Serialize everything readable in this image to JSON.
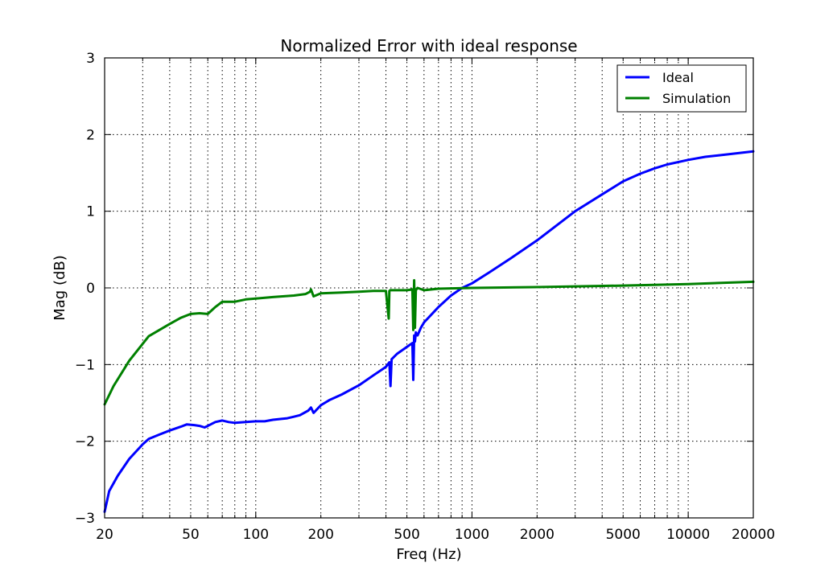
{
  "chart_data": {
    "type": "line",
    "title": "Normalized Error with ideal response",
    "xlabel": "Freq (Hz)",
    "ylabel": "Mag (dB)",
    "xscale": "log",
    "xlim": [
      20,
      20000
    ],
    "ylim": [
      -3,
      3
    ],
    "grid": true,
    "legend_placement": "top-right",
    "x_tick_labels": [
      {
        "value": 20,
        "label": "20"
      },
      {
        "value": 50,
        "label": "50"
      },
      {
        "value": 100,
        "label": "100"
      },
      {
        "value": 200,
        "label": "200"
      },
      {
        "value": 500,
        "label": "500"
      },
      {
        "value": 1000,
        "label": "1000"
      },
      {
        "value": 2000,
        "label": "2000"
      },
      {
        "value": 5000,
        "label": "5000"
      },
      {
        "value": 10000,
        "label": "10000"
      },
      {
        "value": 20000,
        "label": "20000"
      }
    ],
    "y_tick_labels": [
      {
        "value": 3,
        "label": "3"
      },
      {
        "value": 2,
        "label": "2"
      },
      {
        "value": 1,
        "label": "1"
      },
      {
        "value": 0,
        "label": "0"
      },
      {
        "value": -1,
        "label": "−1"
      },
      {
        "value": -2,
        "label": "−2"
      },
      {
        "value": -3,
        "label": "−3"
      }
    ],
    "series": [
      {
        "name": "Ideal",
        "color": "#0000ff",
        "x": [
          20,
          21,
          23,
          26,
          30,
          32,
          36,
          40,
          45,
          48,
          52,
          55,
          58,
          60,
          65,
          70,
          75,
          80,
          90,
          100,
          110,
          120,
          130,
          140,
          150,
          160,
          175,
          180,
          185,
          200,
          220,
          250,
          300,
          350,
          400,
          415,
          420,
          425,
          450,
          500,
          530,
          535,
          540,
          545,
          550,
          560,
          580,
          600,
          700,
          800,
          900,
          1000,
          1200,
          1500,
          2000,
          2500,
          3000,
          4000,
          5000,
          6000,
          7000,
          8000,
          10000,
          12000,
          15000,
          20000
        ],
        "y": [
          -2.92,
          -2.65,
          -2.45,
          -2.23,
          -2.04,
          -1.97,
          -1.91,
          -1.86,
          -1.81,
          -1.78,
          -1.79,
          -1.8,
          -1.82,
          -1.8,
          -1.75,
          -1.73,
          -1.75,
          -1.76,
          -1.75,
          -1.74,
          -1.74,
          -1.72,
          -1.71,
          -1.7,
          -1.68,
          -1.66,
          -1.6,
          -1.56,
          -1.63,
          -1.53,
          -1.46,
          -1.39,
          -1.27,
          -1.14,
          -1.03,
          -0.97,
          -1.28,
          -0.93,
          -0.86,
          -0.77,
          -0.72,
          -1.2,
          -0.62,
          -0.7,
          -0.58,
          -0.62,
          -0.52,
          -0.45,
          -0.25,
          -0.1,
          0.0,
          0.06,
          0.2,
          0.38,
          0.62,
          0.83,
          1.0,
          1.22,
          1.39,
          1.49,
          1.56,
          1.61,
          1.67,
          1.71,
          1.74,
          1.78
        ]
      },
      {
        "name": "Simulation",
        "color": "#008000",
        "x": [
          20,
          22,
          26,
          32,
          40,
          45,
          50,
          55,
          60,
          65,
          70,
          80,
          90,
          100,
          120,
          150,
          170,
          178,
          180,
          185,
          200,
          250,
          300,
          350,
          400,
          412,
          415,
          418,
          430,
          500,
          530,
          535,
          540,
          545,
          550,
          560,
          600,
          700,
          1000,
          2000,
          5000,
          10000,
          20000
        ],
        "y": [
          -1.52,
          -1.28,
          -0.95,
          -0.63,
          -0.47,
          -0.39,
          -0.34,
          -0.33,
          -0.34,
          -0.25,
          -0.18,
          -0.18,
          -0.15,
          -0.14,
          -0.12,
          -0.1,
          -0.08,
          -0.05,
          -0.02,
          -0.11,
          -0.07,
          -0.06,
          -0.05,
          -0.04,
          -0.04,
          -0.4,
          -0.04,
          -0.03,
          -0.03,
          -0.03,
          -0.02,
          -0.55,
          0.1,
          -0.52,
          -0.03,
          0.0,
          -0.03,
          -0.01,
          0.0,
          0.01,
          0.03,
          0.05,
          0.08
        ]
      }
    ]
  }
}
